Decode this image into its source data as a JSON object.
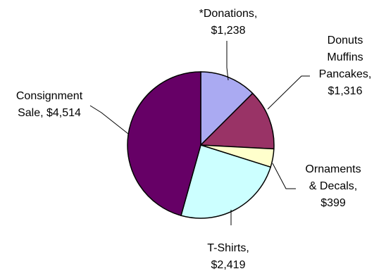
{
  "chart_data": {
    "type": "pie",
    "title": "",
    "slices": [
      {
        "label_lines": [
          "*Donations,",
          "$1,238"
        ],
        "value": 1238,
        "color": "#aaaaf2"
      },
      {
        "label_lines": [
          "Donuts",
          "Muffins",
          "Pancakes,",
          "$1,316"
        ],
        "value": 1316,
        "color": "#993366"
      },
      {
        "label_lines": [
          "Ornaments",
          "& Decals,",
          "$399"
        ],
        "value": 399,
        "color": "#ffffcc"
      },
      {
        "label_lines": [
          "T-Shirts,",
          "$2,419"
        ],
        "value": 2419,
        "color": "#ccffff"
      },
      {
        "label_lines": [
          "Consignment",
          "Sale, $4,514"
        ],
        "value": 4514,
        "color": "#660066"
      }
    ],
    "legend": "none"
  }
}
